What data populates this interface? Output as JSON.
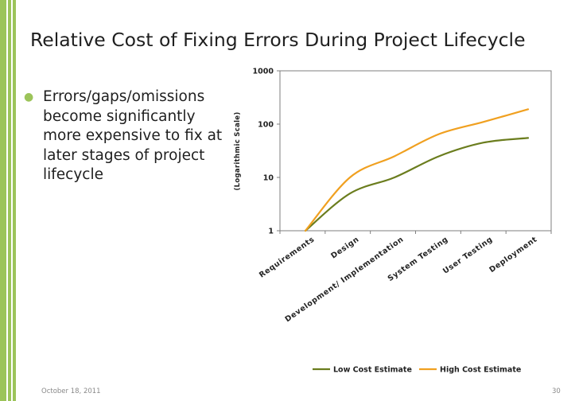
{
  "slide": {
    "title": "Relative Cost of Fixing Errors During Project Lifecycle",
    "bullet": "Errors/gaps/omissions become significantly more expensive to fix at later stages of project lifecycle",
    "footer_date": "October 18, 2011",
    "page_number": "30",
    "accent_color": "#9cc45a"
  },
  "chart_data": {
    "type": "line",
    "categories": [
      "Requirements",
      "Design",
      "Development/ Implementation",
      "System Testing",
      "User Testing",
      "Deployment"
    ],
    "series": [
      {
        "name": "Low Cost Estimate",
        "color": "#6b7d1e",
        "values": [
          1,
          5,
          10,
          25,
          45,
          55
        ],
        "x": [
          0,
          1,
          2,
          3,
          4,
          5
        ]
      },
      {
        "name": "High Cost Estimate",
        "color": "#f0a020",
        "values": [
          1,
          10,
          25,
          65,
          110,
          190
        ],
        "x": [
          0,
          1,
          2,
          3,
          4,
          5
        ]
      }
    ],
    "scale": "log",
    "yticks": [
      1,
      10,
      100,
      1000
    ],
    "ytick_labels": [
      "1",
      "10",
      "100",
      "1000"
    ],
    "ylim": [
      1,
      1000
    ],
    "ylabel": "(Logarithmic Scale)",
    "xlabel": "",
    "legend_position": "bottom",
    "grid": false
  }
}
